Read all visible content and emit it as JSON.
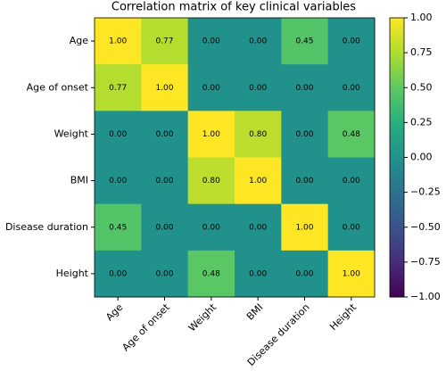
{
  "chart_data": {
    "type": "heatmap",
    "title": "Correlation matrix of key clinical variables",
    "x_categories": [
      "Age",
      "Age of onset",
      "Weight",
      "BMI",
      "Disease duration",
      "Height"
    ],
    "y_categories": [
      "Age",
      "Age of onset",
      "Weight",
      "BMI",
      "Disease duration",
      "Height"
    ],
    "values": [
      [
        1,
        0.77,
        0,
        0,
        0.45,
        0
      ],
      [
        0.77,
        1,
        0,
        0,
        0,
        0
      ],
      [
        0,
        0,
        1,
        0.8,
        0,
        0.48
      ],
      [
        0,
        0,
        0.8,
        1,
        0,
        0
      ],
      [
        0.45,
        0,
        0,
        0,
        1,
        0
      ],
      [
        0,
        0,
        0.48,
        0,
        0,
        1
      ]
    ],
    "value_labels": [
      [
        "1.00",
        "0.77",
        "0.00",
        "0.00",
        "0.45",
        "0.00"
      ],
      [
        "0.77",
        "1.00",
        "0.00",
        "0.00",
        "0.00",
        "0.00"
      ],
      [
        "0.00",
        "0.00",
        "1.00",
        "0.80",
        "0.00",
        "0.48"
      ],
      [
        "0.00",
        "0.00",
        "0.80",
        "1.00",
        "0.00",
        "0.00"
      ],
      [
        "0.45",
        "0.00",
        "0.00",
        "0.00",
        "1.00",
        "0.00"
      ],
      [
        "0.00",
        "0.00",
        "0.48",
        "0.00",
        "0.00",
        "1.00"
      ]
    ],
    "colormap": "viridis",
    "clim": [
      -1,
      1
    ],
    "cticks": [
      {
        "value": 1,
        "label": "1.00"
      },
      {
        "value": 0.75,
        "label": "0.75"
      },
      {
        "value": 0.5,
        "label": "0.50"
      },
      {
        "value": 0.25,
        "label": "0.25"
      },
      {
        "value": 0,
        "label": "0.00"
      },
      {
        "value": -0.25,
        "label": "−0.25"
      },
      {
        "value": -0.5,
        "label": "−0.50"
      },
      {
        "value": -0.75,
        "label": "−0.75"
      },
      {
        "value": -1,
        "label": "−1.00"
      }
    ]
  }
}
